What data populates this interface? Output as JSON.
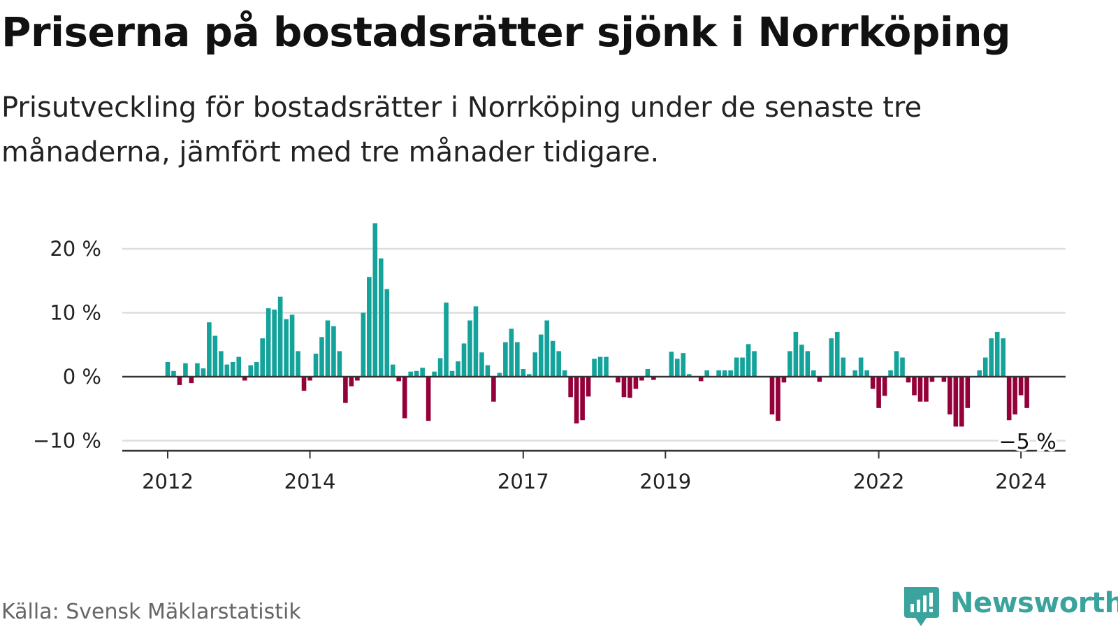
{
  "title": "Priserna på bostadsrätter sjönk i Norrköping",
  "subtitle": "Prisutveckling för bostadsrätter i Norrköping under de senaste tre månaderna, jämfört med tre månader tidigare.",
  "source": "Källa: Svensk Mäklarstatistik",
  "brand": "Newsworthy",
  "colors": {
    "positive": "#13a39b",
    "negative": "#94003a",
    "grid": "#dddddd",
    "axis": "#333333",
    "brand": "#3aa39d"
  },
  "chart_data": {
    "type": "bar",
    "start": "2012-01",
    "unit": "%",
    "ylim": [
      -11,
      25
    ],
    "yticks": [
      -10,
      0,
      10,
      20
    ],
    "ytick_labels": [
      "−10 %",
      "0 %",
      "10 %",
      "20 %"
    ],
    "xtick_labels": [
      "2012",
      "2014",
      "2017",
      "2019",
      "2022",
      "2024"
    ],
    "xtick_month_index": [
      0,
      24,
      60,
      84,
      120,
      144
    ],
    "last_value_label": "−5 %",
    "values": [
      2.3,
      0.9,
      -1.3,
      2.1,
      -1.0,
      2.1,
      1.3,
      8.5,
      6.4,
      4.0,
      1.9,
      2.3,
      3.1,
      -0.6,
      1.8,
      2.3,
      6.0,
      10.7,
      10.5,
      12.5,
      9.0,
      9.7,
      4.0,
      -2.2,
      -0.6,
      3.6,
      6.2,
      8.8,
      7.9,
      4.0,
      -4.1,
      -1.5,
      -0.6,
      10.0,
      15.6,
      24.0,
      18.5,
      13.7,
      1.9,
      -0.7,
      -6.5,
      0.8,
      0.9,
      1.4,
      -6.9,
      0.8,
      2.9,
      11.6,
      0.9,
      2.4,
      5.2,
      8.8,
      11.0,
      3.8,
      1.8,
      -3.9,
      0.6,
      5.4,
      7.5,
      5.4,
      1.2,
      0.4,
      3.8,
      6.6,
      8.8,
      5.6,
      4.0,
      1.0,
      -3.2,
      -7.3,
      -6.8,
      -3.1,
      2.8,
      3.1,
      3.1,
      0.0,
      -0.9,
      -3.2,
      -3.3,
      -1.9,
      -0.6,
      1.2,
      -0.5,
      0.0,
      0.0,
      3.9,
      2.8,
      3.7,
      0.4,
      -0.1,
      -0.7,
      1.0,
      0.0,
      1.0,
      1.0,
      1.0,
      3.0,
      3.0,
      5.1,
      4.0,
      0.0,
      0.0,
      -5.9,
      -6.9,
      -0.9,
      4.0,
      7.0,
      5.0,
      4.0,
      1.0,
      -0.8,
      0.0,
      6.0,
      7.0,
      3.0,
      0.0,
      1.0,
      3.0,
      1.0,
      -1.9,
      -4.9,
      -3.0,
      1.0,
      4.0,
      3.0,
      -0.9,
      -2.9,
      -3.9,
      -3.9,
      -0.8,
      0.0,
      -0.8,
      -5.9,
      -7.8,
      -7.8,
      -4.9,
      0.0,
      1.0,
      3.0,
      6.0,
      7.0,
      6.0,
      -6.8,
      -5.9,
      -2.9,
      -4.9
    ]
  }
}
